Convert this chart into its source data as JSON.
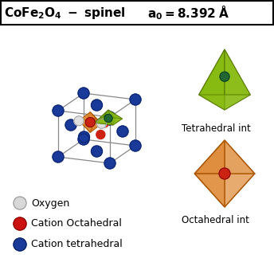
{
  "title_left": "CoFe₂O₄ - spinel",
  "title_right": "a₀ = 8.392 Å",
  "legend_items": [
    {
      "label": "Oxygen",
      "color": "#d8d8d8",
      "edge": "#999999"
    },
    {
      "label": "Cation Octahedral",
      "color": "#cc1111",
      "edge": "#880000"
    },
    {
      "label": "Cation tetrahedral",
      "color": "#1a3a99",
      "edge": "#0a1f66"
    }
  ],
  "tetrahedral_label": "Tetrahedral int",
  "octahedral_label": "Octahedral int",
  "bg_color": "#ffffff",
  "tet_poly_color": "#88bb11",
  "tet_poly_dark": "#557700",
  "tet_center_color": "#226633",
  "oct_poly_color": "#dd8833",
  "oct_poly_dark": "#aa5500",
  "oct_center_color": "#cc2211",
  "node_color": "#1a3a99",
  "node_edge": "#0a1f66",
  "white_node_color": "#e0e0e0",
  "white_node_edge": "#999999",
  "cube_line_color": "#888888"
}
